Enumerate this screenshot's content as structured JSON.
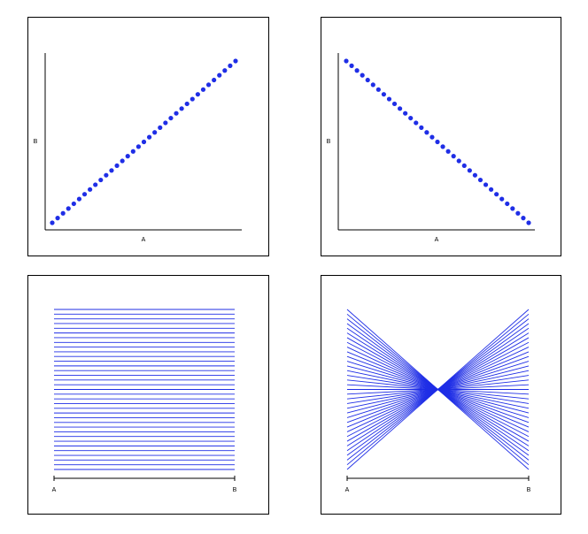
{
  "chart_data": [
    {
      "type": "scatter",
      "xlabel": "A",
      "ylabel": "B",
      "relationship": "positive",
      "series": [
        {
          "points": [
            [
              1,
              1
            ],
            [
              2,
              2
            ],
            [
              3,
              3
            ],
            [
              4,
              4
            ],
            [
              5,
              5
            ],
            [
              6,
              6
            ],
            [
              7,
              7
            ],
            [
              8,
              8
            ],
            [
              9,
              9
            ],
            [
              10,
              10
            ],
            [
              11,
              11
            ],
            [
              12,
              12
            ],
            [
              13,
              13
            ],
            [
              14,
              14
            ],
            [
              15,
              15
            ],
            [
              16,
              16
            ],
            [
              17,
              17
            ],
            [
              18,
              18
            ],
            [
              19,
              19
            ],
            [
              20,
              20
            ],
            [
              21,
              21
            ],
            [
              22,
              22
            ],
            [
              23,
              23
            ],
            [
              24,
              24
            ],
            [
              25,
              25
            ],
            [
              26,
              26
            ],
            [
              27,
              27
            ],
            [
              28,
              28
            ],
            [
              29,
              29
            ],
            [
              30,
              30
            ],
            [
              31,
              31
            ],
            [
              32,
              32
            ],
            [
              33,
              33
            ],
            [
              34,
              34
            ],
            [
              35,
              35
            ]
          ]
        }
      ],
      "xlim": [
        0,
        36
      ],
      "ylim": [
        0,
        36
      ],
      "color": "#1f2ee6",
      "grid": false,
      "ticks": false
    },
    {
      "type": "scatter",
      "xlabel": "A",
      "ylabel": "B",
      "relationship": "negative",
      "series": [
        {
          "points": [
            [
              1,
              35
            ],
            [
              2,
              34
            ],
            [
              3,
              33
            ],
            [
              4,
              32
            ],
            [
              5,
              31
            ],
            [
              6,
              30
            ],
            [
              7,
              29
            ],
            [
              8,
              28
            ],
            [
              9,
              27
            ],
            [
              10,
              26
            ],
            [
              11,
              25
            ],
            [
              12,
              24
            ],
            [
              13,
              23
            ],
            [
              14,
              22
            ],
            [
              15,
              21
            ],
            [
              16,
              20
            ],
            [
              17,
              19
            ],
            [
              18,
              18
            ],
            [
              19,
              17
            ],
            [
              20,
              16
            ],
            [
              21,
              15
            ],
            [
              22,
              14
            ],
            [
              23,
              13
            ],
            [
              24,
              12
            ],
            [
              25,
              11
            ],
            [
              26,
              10
            ],
            [
              27,
              9
            ],
            [
              28,
              8
            ],
            [
              29,
              7
            ],
            [
              30,
              6
            ],
            [
              31,
              5
            ],
            [
              32,
              4
            ],
            [
              33,
              3
            ],
            [
              34,
              2
            ],
            [
              35,
              1
            ]
          ]
        }
      ],
      "xlim": [
        0,
        36
      ],
      "ylim": [
        0,
        36
      ],
      "color": "#1f2ee6",
      "grid": false,
      "ticks": false
    },
    {
      "type": "parallel-coordinates",
      "axes": [
        "A",
        "B"
      ],
      "relationship": "positive",
      "series": [
        {
          "A": [
            35,
            34,
            33,
            32,
            31,
            30,
            29,
            28,
            27,
            26,
            25,
            24,
            23,
            22,
            21,
            20,
            19,
            18,
            17,
            16,
            15,
            14,
            13,
            12,
            11,
            10,
            9,
            8,
            7,
            6,
            5,
            4,
            3,
            2,
            1
          ],
          "B": [
            35,
            34,
            33,
            32,
            31,
            30,
            29,
            28,
            27,
            26,
            25,
            24,
            23,
            22,
            21,
            20,
            19,
            18,
            17,
            16,
            15,
            14,
            13,
            12,
            11,
            10,
            9,
            8,
            7,
            6,
            5,
            4,
            3,
            2,
            1
          ]
        }
      ],
      "range": [
        1,
        35
      ],
      "color": "#1f2ee6"
    },
    {
      "type": "parallel-coordinates",
      "axes": [
        "A",
        "B"
      ],
      "relationship": "negative",
      "series": [
        {
          "A": [
            35,
            34,
            33,
            32,
            31,
            30,
            29,
            28,
            27,
            26,
            25,
            24,
            23,
            22,
            21,
            20,
            19,
            18,
            17,
            16,
            15,
            14,
            13,
            12,
            11,
            10,
            9,
            8,
            7,
            6,
            5,
            4,
            3,
            2,
            1
          ],
          "B": [
            1,
            2,
            3,
            4,
            5,
            6,
            7,
            8,
            9,
            10,
            11,
            12,
            13,
            14,
            15,
            16,
            17,
            18,
            19,
            20,
            21,
            22,
            23,
            24,
            25,
            26,
            27,
            28,
            29,
            30,
            31,
            32,
            33,
            34,
            35
          ]
        }
      ],
      "range": [
        1,
        35
      ],
      "color": "#1f2ee6"
    }
  ]
}
